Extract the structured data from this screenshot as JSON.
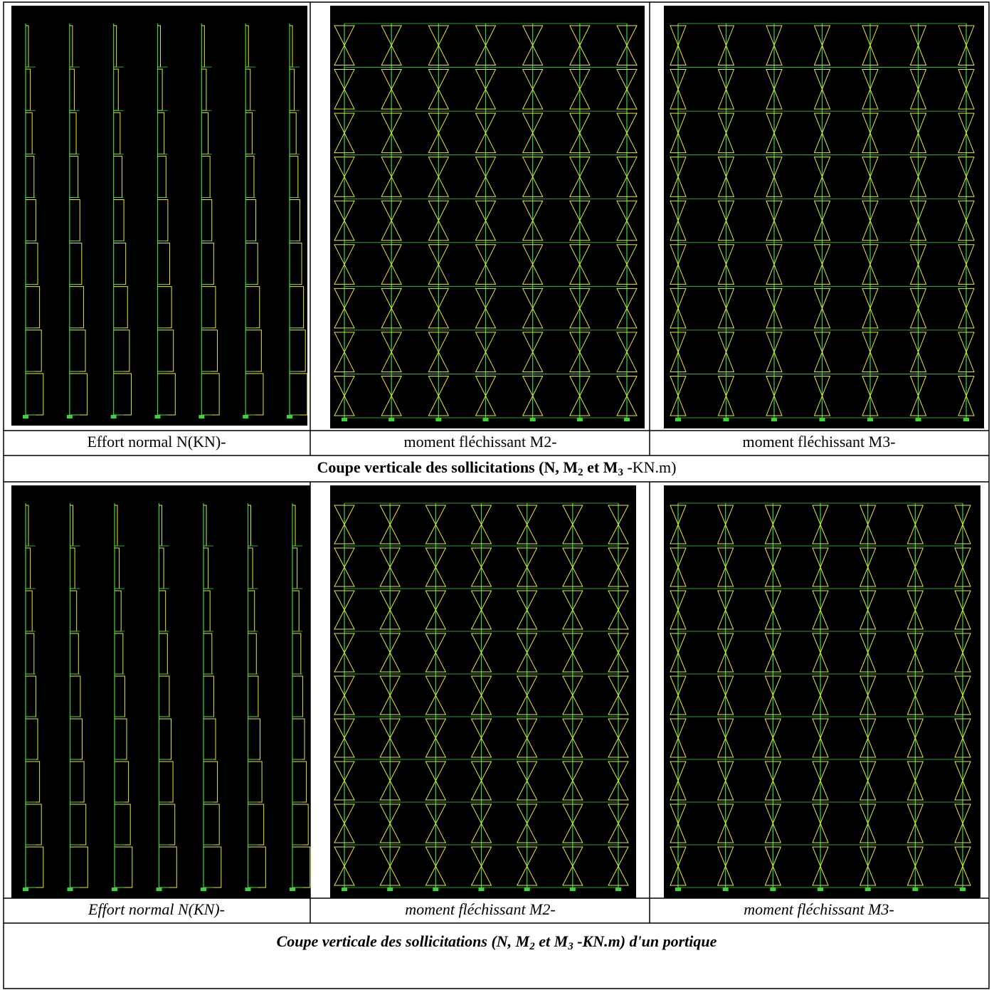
{
  "table": {
    "rows": [
      {
        "captions": [
          "Effort normal N(KN)-",
          "moment fléchissant M2-",
          "moment fléchissant M3-"
        ],
        "title": [
          "Coupe verticale des sollicitations (N, M",
          "2",
          " et M",
          "3",
          " -",
          "KN.m)"
        ]
      },
      {
        "captions": [
          "Effort normal N(KN)-",
          "moment fléchissant M2-",
          "moment fléchissant M3-"
        ],
        "title": [
          "Coupe verticale des sollicitations (N, M",
          "2",
          "  et M",
          "3",
          " -KN.m) d'un portique"
        ]
      }
    ]
  }
}
